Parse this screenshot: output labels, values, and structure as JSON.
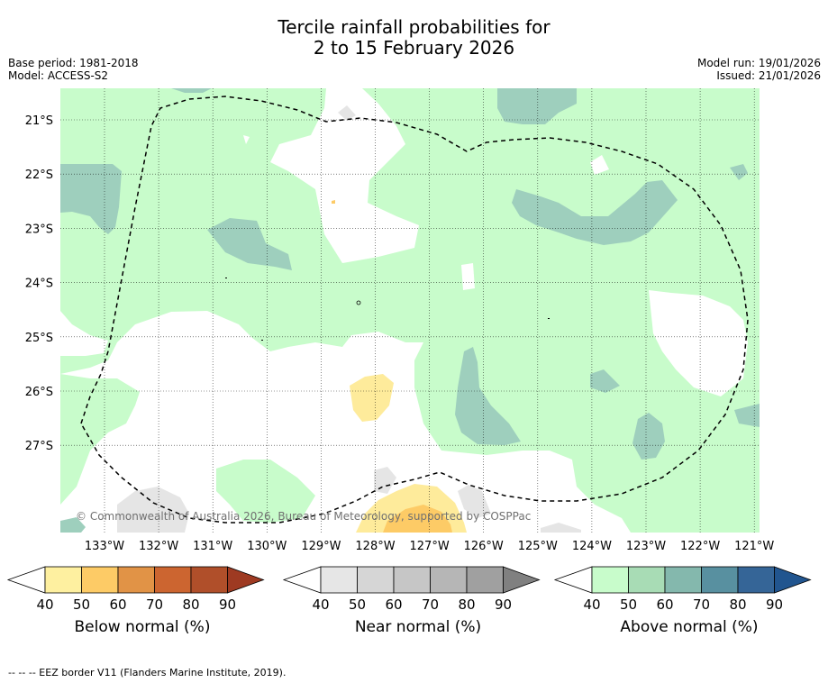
{
  "header": {
    "title_line1": "Tercile rainfall probabilities for",
    "title_line2": "2 to 15 February 2026",
    "base_period": "Base period: 1981-2018",
    "model": "Model: ACCESS-S2",
    "model_run": "Model run: 19/01/2026",
    "issued": "Issued: 21/01/2026"
  },
  "map": {
    "lat_labels": [
      "21°S",
      "22°S",
      "23°S",
      "24°S",
      "25°S",
      "26°S",
      "27°S"
    ],
    "lon_labels": [
      "133°W",
      "132°W",
      "131°W",
      "130°W",
      "129°W",
      "128°W",
      "127°W",
      "126°W",
      "125°W",
      "124°W",
      "123°W",
      "122°W",
      "121°W"
    ],
    "copyright": "© Commonwealth of Australia 2026, Bureau of Meteorology, supported by COSPPac",
    "colors": {
      "above_40": "#c8fccb",
      "above_60": "#9ecfbd",
      "below_40": "#feeb9b",
      "below_50": "#fdcb66",
      "near_40": "#e5e5e5",
      "eez_border": "#000000"
    }
  },
  "legends": [
    {
      "title": "Below normal (%)",
      "ticks": [
        "40",
        "50",
        "60",
        "70",
        "80",
        "90"
      ],
      "colors": [
        "#ffffff",
        "#fef0a0",
        "#fdcb66",
        "#e19346",
        "#cc6530",
        "#b04f2a",
        "#9e3a22"
      ]
    },
    {
      "title": "Near normal (%)",
      "ticks": [
        "40",
        "50",
        "60",
        "70",
        "80",
        "90"
      ],
      "colors": [
        "#ffffff",
        "#e6e6e6",
        "#d6d6d6",
        "#c6c6c6",
        "#b6b6b6",
        "#a0a0a0",
        "#808080"
      ]
    },
    {
      "title": "Above normal (%)",
      "ticks": [
        "40",
        "50",
        "60",
        "70",
        "80",
        "90"
      ],
      "colors": [
        "#ffffff",
        "#c8fccb",
        "#a8dcb5",
        "#84b8ad",
        "#5890a0",
        "#356597",
        "#21558f"
      ]
    }
  ],
  "footnote": "--  --  -- EEZ border V11 (Flanders Marine Institute, 2019)."
}
